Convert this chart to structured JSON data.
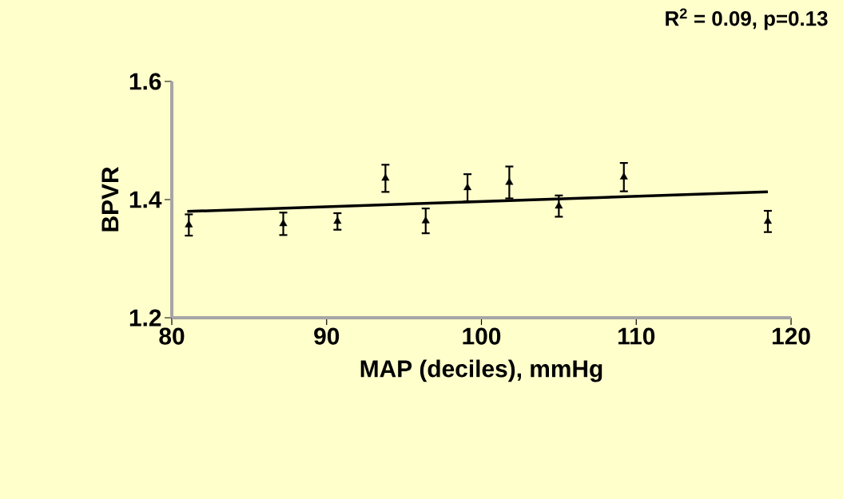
{
  "chart_data": {
    "type": "scatter",
    "xlabel": "MAP (deciles), mmHg",
    "ylabel": "BPVR",
    "annotations": [
      "R$^{2}$ = 0.09, p=0.13"
    ],
    "xlim": [
      80,
      120
    ],
    "xticks": [
      80,
      90,
      100,
      110,
      120
    ],
    "ylim": [
      1.2,
      1.6
    ],
    "yticks": [
      {
        "value": 1.2,
        "label": "1.2"
      },
      {
        "value": 1.4,
        "label": "1.4"
      },
      {
        "value": 1.6,
        "label": "1.6"
      }
    ],
    "series": [
      {
        "marker": "triangle",
        "color": "#000000",
        "x": [
          81.1,
          87.2,
          90.7,
          93.8,
          96.4,
          99.1,
          101.8,
          105.0,
          109.2,
          118.5
        ],
        "values": [
          1.357,
          1.359,
          1.363,
          1.436,
          1.364,
          1.42,
          1.429,
          1.389,
          1.438,
          1.363
        ],
        "errors": [
          0.018,
          0.019,
          0.014,
          0.023,
          0.021,
          0.023,
          0.027,
          0.018,
          0.024,
          0.018
        ]
      },
      {
        "type": "line",
        "color": "#000000",
        "x": [
          81.0,
          118.5
        ],
        "values": [
          1.38,
          1.413
        ]
      }
    ]
  }
}
